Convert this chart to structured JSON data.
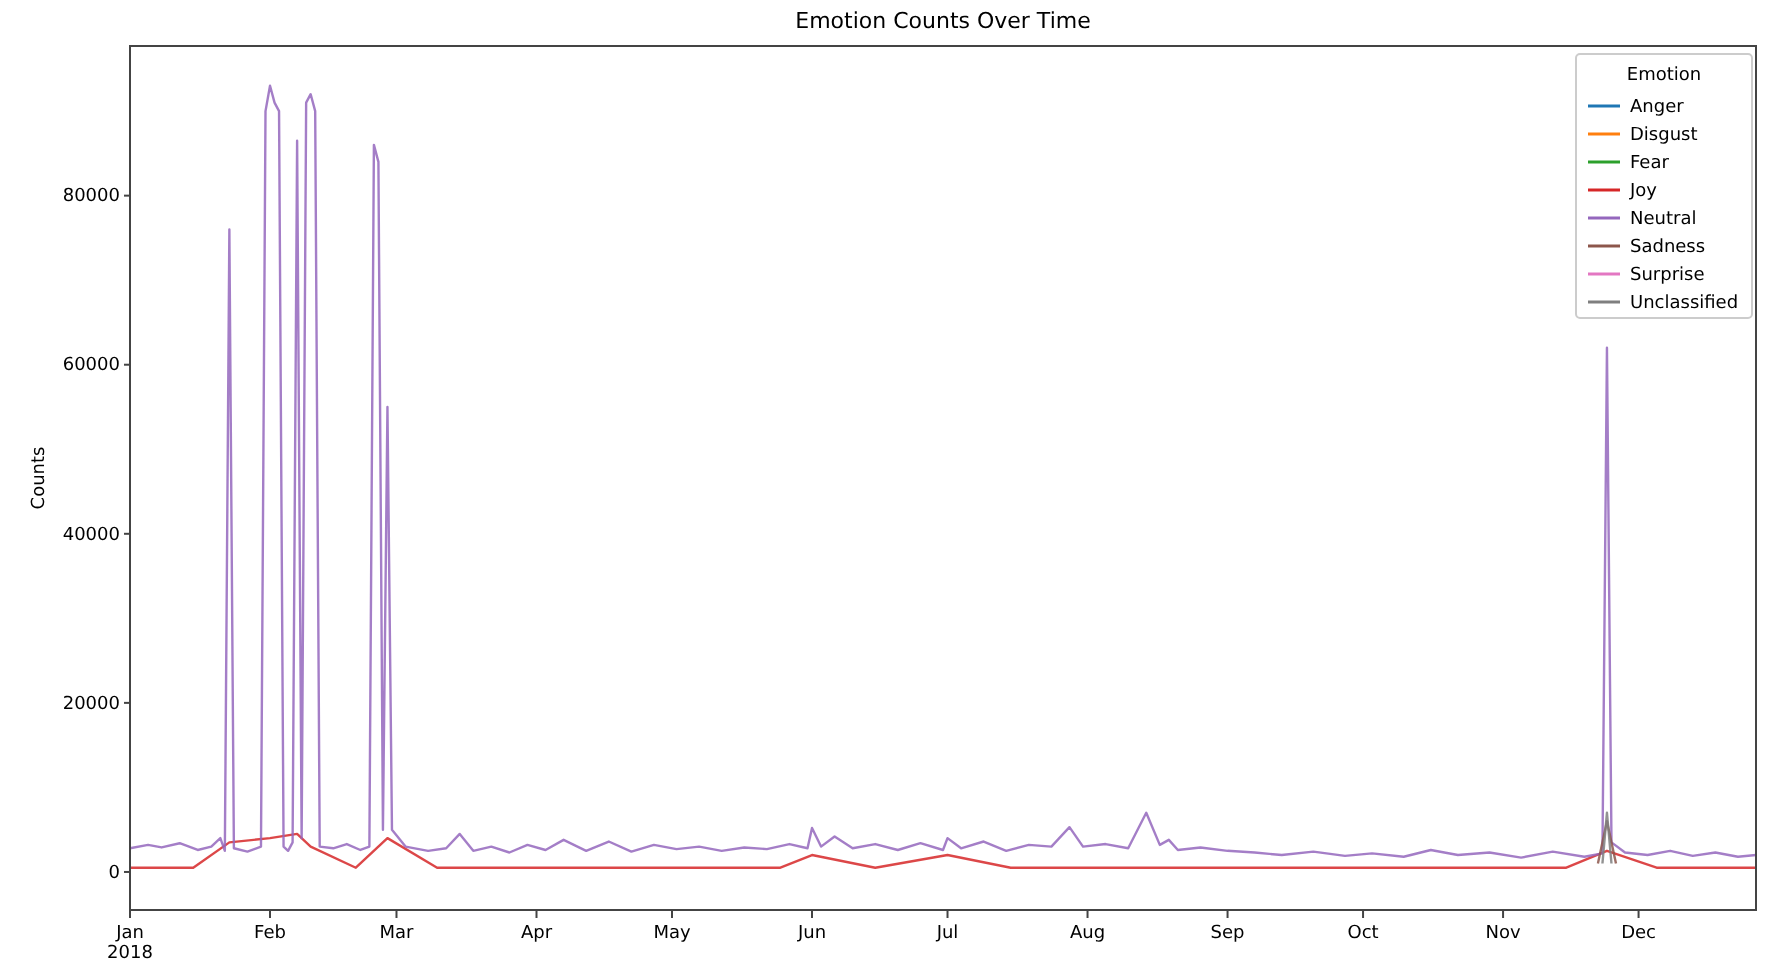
{
  "chart_data": {
    "type": "line",
    "title": "Emotion Counts Over Time",
    "ylabel": "Counts",
    "legend_title": "Emotion",
    "legend": "top right",
    "grid": false,
    "x": [
      "2018-01-01",
      "2018-01-15",
      "2018-01-23",
      "2018-02-01",
      "2018-02-07",
      "2018-02-10",
      "2018-02-20",
      "2018-02-27",
      "2018-03-10",
      "2018-03-25",
      "2018-04-10",
      "2018-04-25",
      "2018-05-10",
      "2018-05-25",
      "2018-06-01",
      "2018-06-15",
      "2018-07-01",
      "2018-07-15",
      "2018-08-01",
      "2018-08-15",
      "2018-09-01",
      "2018-09-20",
      "2018-10-10",
      "2018-10-30",
      "2018-11-15",
      "2018-11-24",
      "2018-12-05",
      "2018-12-27"
    ],
    "xlim": [
      "2018-01-01",
      "2018-12-27"
    ],
    "xticks": [
      {
        "value": "2018-01-01",
        "label": "Jan\n2018"
      },
      {
        "value": "2018-02-01",
        "label": "Feb"
      },
      {
        "value": "2018-03-01",
        "label": "Mar"
      },
      {
        "value": "2018-04-01",
        "label": "Apr"
      },
      {
        "value": "2018-05-01",
        "label": "May"
      },
      {
        "value": "2018-06-01",
        "label": "Jun"
      },
      {
        "value": "2018-07-01",
        "label": "Jul"
      },
      {
        "value": "2018-08-01",
        "label": "Aug"
      },
      {
        "value": "2018-09-01",
        "label": "Sep"
      },
      {
        "value": "2018-10-01",
        "label": "Oct"
      },
      {
        "value": "2018-11-01",
        "label": "Nov"
      },
      {
        "value": "2018-12-01",
        "label": "Dec"
      }
    ],
    "ylim": [
      -4500,
      97700
    ],
    "yticks": [
      0,
      20000,
      40000,
      60000,
      80000
    ],
    "series": [
      {
        "name": "Anger",
        "color": "#1f77b4",
        "values": [
          null,
          null,
          null,
          null,
          null,
          null,
          null,
          null,
          null,
          null,
          null,
          null,
          null,
          null,
          null,
          null,
          null,
          null,
          null,
          null,
          null,
          null,
          null,
          null,
          null,
          null,
          null,
          null
        ]
      },
      {
        "name": "Disgust",
        "color": "#ff7f0e",
        "values": [
          null,
          null,
          null,
          null,
          null,
          null,
          null,
          null,
          null,
          null,
          null,
          null,
          null,
          null,
          null,
          null,
          null,
          null,
          null,
          null,
          null,
          null,
          null,
          null,
          null,
          null,
          null,
          null
        ]
      },
      {
        "name": "Fear",
        "color": "#2ca02c",
        "values": [
          null,
          null,
          null,
          null,
          null,
          null,
          null,
          null,
          null,
          null,
          null,
          null,
          null,
          null,
          null,
          null,
          null,
          null,
          null,
          null,
          null,
          null,
          null,
          null,
          null,
          null,
          null,
          null
        ]
      },
      {
        "name": "Joy",
        "color": "#d62728",
        "values": [
          500,
          500,
          3500,
          4000,
          4500,
          3000,
          500,
          4000,
          500,
          500,
          500,
          500,
          500,
          500,
          2000,
          500,
          2000,
          500,
          500,
          500,
          500,
          500,
          500,
          500,
          500,
          2500,
          500,
          500
        ]
      },
      {
        "name": "Neutral",
        "color": "#9467bd",
        "x": [
          "2018-01-01",
          "2018-01-05",
          "2018-01-08",
          "2018-01-12",
          "2018-01-16",
          "2018-01-19",
          "2018-01-21",
          "2018-01-22",
          "2018-01-23",
          "2018-01-24",
          "2018-01-27",
          "2018-01-30",
          "2018-01-31",
          "2018-02-01",
          "2018-02-02",
          "2018-02-03",
          "2018-02-04",
          "2018-02-05",
          "2018-02-06",
          "2018-02-07",
          "2018-02-08",
          "2018-02-09",
          "2018-02-10",
          "2018-02-11",
          "2018-02-12",
          "2018-02-15",
          "2018-02-18",
          "2018-02-21",
          "2018-02-23",
          "2018-02-24",
          "2018-02-25",
          "2018-02-26",
          "2018-02-27",
          "2018-02-28",
          "2018-03-03",
          "2018-03-08",
          "2018-03-12",
          "2018-03-15",
          "2018-03-18",
          "2018-03-22",
          "2018-03-26",
          "2018-03-30",
          "2018-04-03",
          "2018-04-07",
          "2018-04-12",
          "2018-04-17",
          "2018-04-22",
          "2018-04-27",
          "2018-05-02",
          "2018-05-07",
          "2018-05-12",
          "2018-05-17",
          "2018-05-22",
          "2018-05-27",
          "2018-05-31",
          "2018-06-01",
          "2018-06-03",
          "2018-06-06",
          "2018-06-10",
          "2018-06-15",
          "2018-06-20",
          "2018-06-25",
          "2018-06-30",
          "2018-07-01",
          "2018-07-04",
          "2018-07-09",
          "2018-07-14",
          "2018-07-19",
          "2018-07-24",
          "2018-07-28",
          "2018-07-31",
          "2018-08-05",
          "2018-08-10",
          "2018-08-14",
          "2018-08-17",
          "2018-08-19",
          "2018-08-21",
          "2018-08-26",
          "2018-09-01",
          "2018-09-07",
          "2018-09-13",
          "2018-09-20",
          "2018-09-27",
          "2018-10-03",
          "2018-10-10",
          "2018-10-16",
          "2018-10-22",
          "2018-10-29",
          "2018-11-05",
          "2018-11-12",
          "2018-11-19",
          "2018-11-23",
          "2018-11-24",
          "2018-11-25",
          "2018-11-28",
          "2018-12-03",
          "2018-12-08",
          "2018-12-13",
          "2018-12-18",
          "2018-12-23",
          "2018-12-27"
        ],
        "values": [
          2800,
          3200,
          2900,
          3400,
          2600,
          3000,
          4000,
          2500,
          76000,
          2800,
          2400,
          3000,
          90000,
          93000,
          91000,
          90000,
          3000,
          2500,
          3500,
          86500,
          4000,
          91000,
          92000,
          90000,
          3000,
          2800,
          3300,
          2600,
          3000,
          86000,
          84000,
          5000,
          55000,
          5000,
          3000,
          2500,
          2800,
          4500,
          2500,
          3000,
          2300,
          3200,
          2600,
          3800,
          2500,
          3600,
          2400,
          3200,
          2700,
          3000,
          2500,
          2900,
          2700,
          3300,
          2800,
          5200,
          3000,
          4200,
          2800,
          3300,
          2600,
          3400,
          2600,
          4000,
          2800,
          3600,
          2500,
          3200,
          3000,
          5300,
          3000,
          3300,
          2800,
          7000,
          3200,
          3800,
          2600,
          2900,
          2500,
          2300,
          2000,
          2400,
          1900,
          2200,
          1800,
          2600,
          2000,
          2300,
          1700,
          2400,
          1800,
          2200,
          62000,
          3500,
          2300,
          2000,
          2500,
          1900,
          2300,
          1800,
          2000
        ]
      },
      {
        "name": "Sadness",
        "color": "#8c564b",
        "x": [
          "2018-11-22",
          "2018-11-24",
          "2018-11-26"
        ],
        "values": [
          1000,
          6000,
          1000
        ]
      },
      {
        "name": "Surprise",
        "color": "#e377c2",
        "values": [
          null,
          null,
          null,
          null,
          null,
          null,
          null,
          null,
          null,
          null,
          null,
          null,
          null,
          null,
          null,
          null,
          null,
          null,
          null,
          null,
          null,
          null,
          null,
          null,
          null,
          null,
          null,
          null
        ]
      },
      {
        "name": "Unclassified",
        "color": "#7f7f7f",
        "x": [
          "2018-11-23",
          "2018-11-24",
          "2018-11-25"
        ],
        "values": [
          1000,
          7000,
          1000
        ]
      }
    ]
  }
}
